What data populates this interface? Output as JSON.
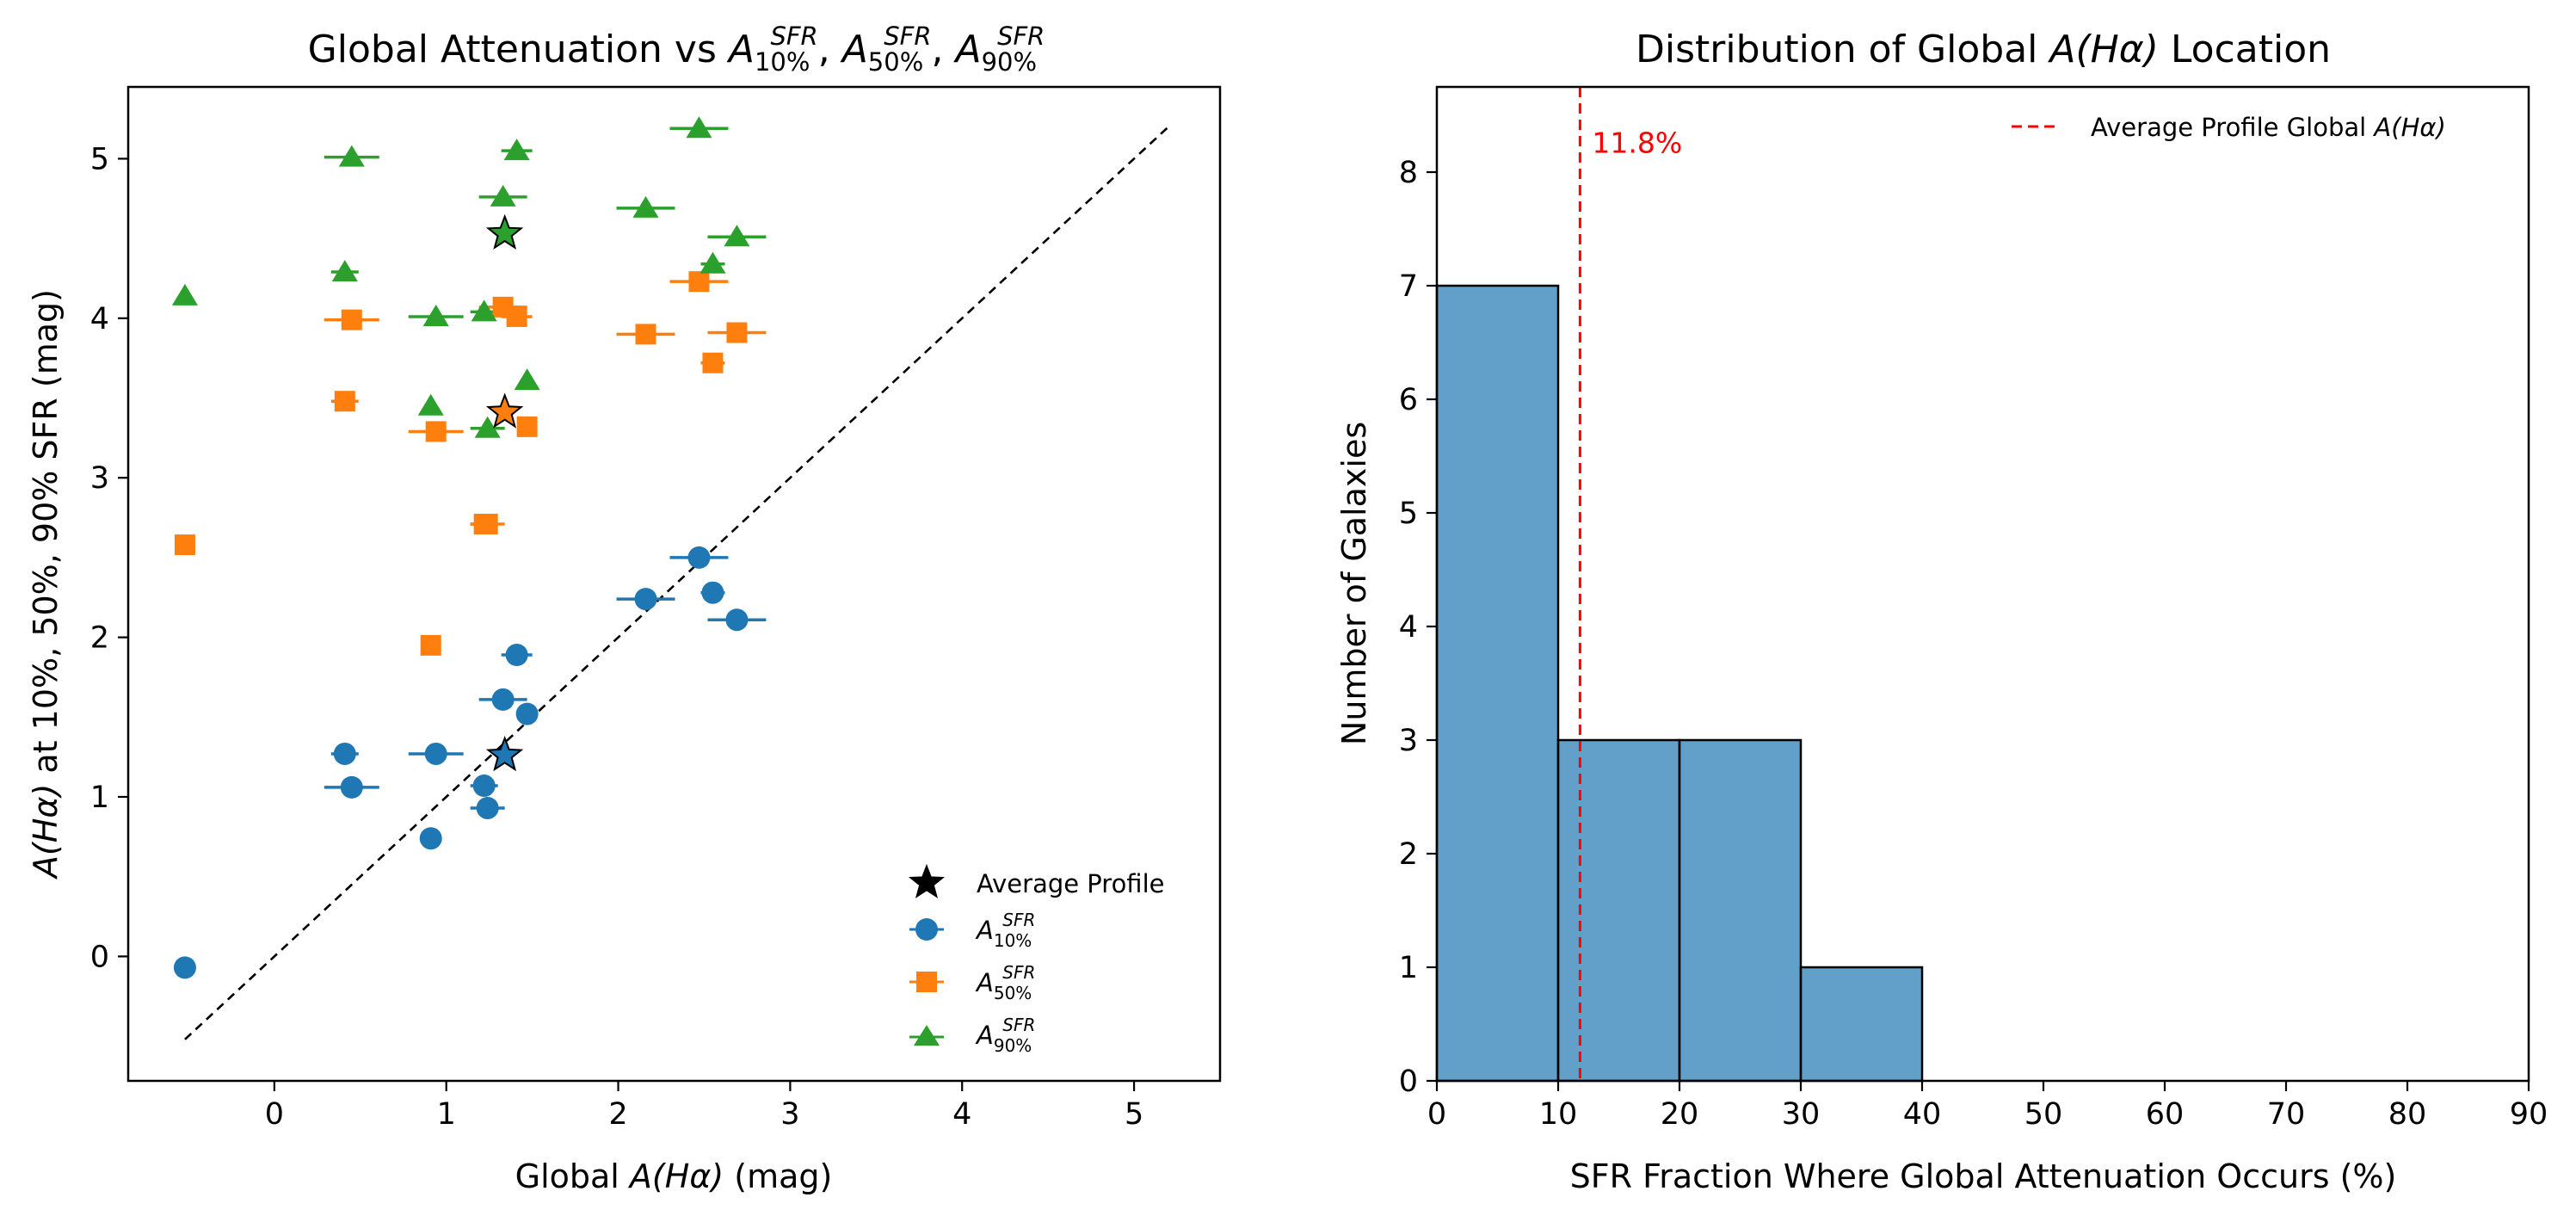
{
  "chart_data": [
    {
      "type": "scatter",
      "title": "Global Attenuation vs A_{10%}^{SFR}, A_{50%}^{SFR}, A_{90%}^{SFR}",
      "title_parts": {
        "lead": "Global Attenuation vs ",
        "sym": "A",
        "sub": [
          "10%",
          "50%",
          "90%"
        ],
        "sup": "SFR"
      },
      "xlabel": "Global A(Hα) (mag)",
      "xlabel_parts": {
        "pre": "Global ",
        "math": "A(Hα)",
        "post": " (mag)"
      },
      "ylabel": "A(Hα) at 10%, 50%, 90% SFR (mag)",
      "ylabel_parts": {
        "math": "A(Hα)",
        "post": " at 10%, 50%, 90% SFR (mag)"
      },
      "xlim": [
        -0.85,
        5.5
      ],
      "ylim": [
        -0.78,
        5.45
      ],
      "xticks": [
        0,
        1,
        2,
        3,
        4,
        5
      ],
      "yticks": [
        0,
        1,
        2,
        3,
        4,
        5
      ],
      "one_to_one_line": {
        "from": -0.52,
        "to": 5.2,
        "style": "dashed"
      },
      "legend": {
        "placement": "lower-right",
        "entries": [
          {
            "label": "Average Profile",
            "marker": "star"
          },
          {
            "label": "A_{10%}^{SFR}",
            "sub": "10%",
            "sup": "SFR",
            "marker": "circle"
          },
          {
            "label": "A_{50%}^{SFR}",
            "sub": "50%",
            "sup": "SFR",
            "marker": "square"
          },
          {
            "label": "A_{90%}^{SFR}",
            "sub": "90%",
            "sup": "SFR",
            "marker": "triangle"
          }
        ]
      },
      "series": [
        {
          "name": "A_{10%}^{SFR}",
          "marker": "circle",
          "color": "#1f77b4",
          "x": [
            -0.52,
            0.41,
            0.45,
            0.94,
            0.91,
            1.22,
            1.24,
            1.33,
            1.41,
            1.47,
            2.16,
            2.47,
            2.55,
            2.69
          ],
          "y": [
            -0.07,
            1.27,
            1.06,
            1.27,
            0.74,
            1.07,
            0.93,
            1.61,
            1.89,
            1.52,
            2.24,
            2.5,
            2.28,
            2.11
          ],
          "xerr": [
            0.0,
            0.08,
            0.16,
            0.16,
            0.0,
            0.08,
            0.1,
            0.14,
            0.09,
            0.0,
            0.17,
            0.17,
            0.07,
            0.17
          ]
        },
        {
          "name": "A_{50%}^{SFR}",
          "marker": "square",
          "color": "#ff7f0e",
          "x": [
            -0.52,
            0.41,
            0.45,
            0.94,
            0.91,
            1.22,
            1.24,
            1.33,
            1.41,
            1.47,
            2.16,
            2.47,
            2.55,
            2.69
          ],
          "y": [
            2.58,
            3.48,
            3.99,
            3.29,
            1.95,
            2.71,
            2.71,
            4.07,
            4.01,
            3.32,
            3.9,
            4.23,
            3.72,
            3.91
          ],
          "xerr": [
            0.0,
            0.08,
            0.16,
            0.16,
            0.0,
            0.08,
            0.1,
            0.14,
            0.09,
            0.0,
            0.17,
            0.17,
            0.07,
            0.17
          ]
        },
        {
          "name": "A_{90%}^{SFR}",
          "marker": "triangle",
          "color": "#2ca02c",
          "x": [
            -0.52,
            0.41,
            0.45,
            0.94,
            0.91,
            1.22,
            1.24,
            1.33,
            1.41,
            1.47,
            2.16,
            2.47,
            2.55,
            2.69
          ],
          "y": [
            4.14,
            4.29,
            5.01,
            4.01,
            3.45,
            4.04,
            3.31,
            4.76,
            5.05,
            3.61,
            4.69,
            5.19,
            4.34,
            4.51
          ],
          "xerr": [
            0.0,
            0.08,
            0.16,
            0.16,
            0.0,
            0.08,
            0.1,
            0.14,
            0.09,
            0.0,
            0.17,
            0.17,
            0.07,
            0.17
          ]
        },
        {
          "name": "Average Profile",
          "marker": "star",
          "x": [
            1.34,
            1.34,
            1.34
          ],
          "y": [
            1.26,
            3.41,
            4.53
          ],
          "colors": [
            "#1f77b4",
            "#ff7f0e",
            "#2ca02c"
          ]
        }
      ]
    },
    {
      "type": "bar",
      "title": "Distribution of Global A(Hα) Location",
      "title_parts": {
        "pre": "Distribution of Global ",
        "math": "A(Hα)",
        "post": " Location"
      },
      "xlabel": "SFR Fraction Where Global Attenuation Occurs (%)",
      "ylabel": "Number of Galaxies",
      "xlim": [
        0,
        90
      ],
      "ylim": [
        0,
        8.75
      ],
      "xticks": [
        0,
        10,
        20,
        30,
        40,
        50,
        60,
        70,
        80,
        90
      ],
      "yticks": [
        0,
        1,
        2,
        3,
        4,
        5,
        6,
        7,
        8
      ],
      "bins": [
        [
          0,
          10
        ],
        [
          10,
          20
        ],
        [
          20,
          30
        ],
        [
          30,
          40
        ]
      ],
      "values": [
        7,
        3,
        3,
        1
      ],
      "color": "#1f77b4",
      "reference_line": {
        "x": 11.8,
        "label": "11.8%",
        "color": "#ff0000",
        "style": "dashed"
      },
      "legend": {
        "placement": "top-right",
        "entries": [
          {
            "label": "Average Profile Global A(Hα)",
            "pre": "Average Profile Global ",
            "math": "A(Hα)"
          }
        ]
      }
    }
  ]
}
